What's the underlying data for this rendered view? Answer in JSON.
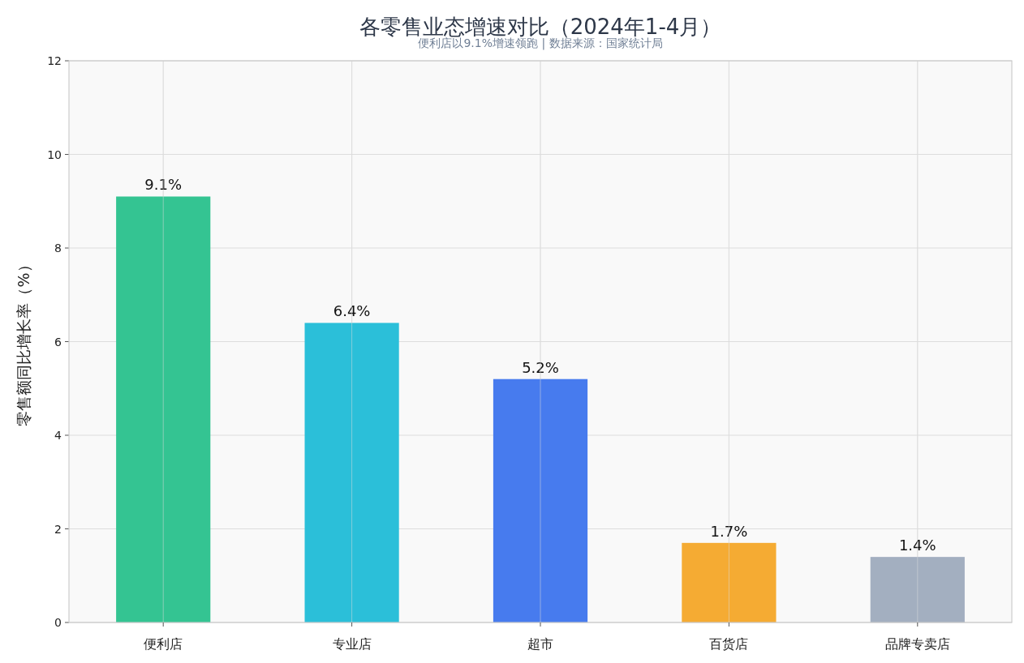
{
  "chart_data": {
    "type": "bar",
    "title": "各零售业态增速对比（2024年1-4月）",
    "subtitle": "便利店以9.1%增速领跑 | 数据来源：国家统计局",
    "ylabel": "零售额同比增长率（%）",
    "categories": [
      "便利店",
      "专业店",
      "超市",
      "百货店",
      "品牌专卖店"
    ],
    "values": [
      9.1,
      6.4,
      5.2,
      1.7,
      1.4
    ],
    "colors": [
      "#34c492",
      "#2bbfd9",
      "#477bee",
      "#f5ab33",
      "#a3afc0"
    ],
    "value_labels": [
      "9.1%",
      "6.4%",
      "5.2%",
      "1.7%",
      "1.4%"
    ],
    "ylim": [
      0,
      12
    ],
    "yticks": [
      0,
      2,
      4,
      6,
      8,
      10,
      12
    ],
    "grid": true
  }
}
